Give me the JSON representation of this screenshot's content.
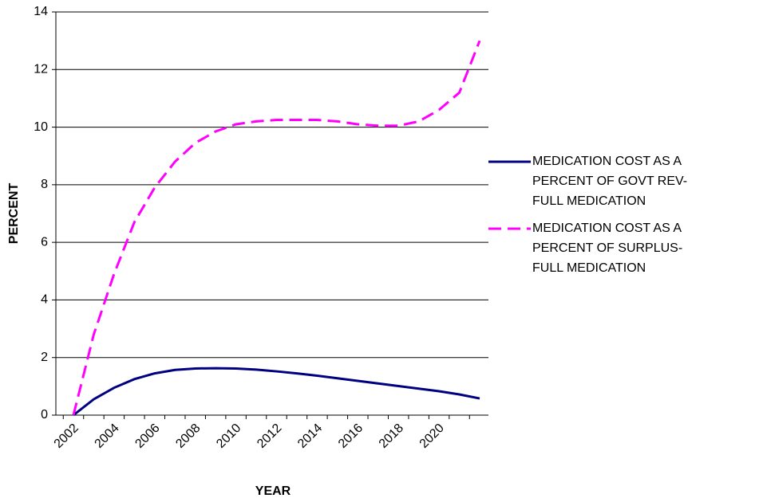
{
  "chart_data": {
    "type": "line",
    "x_label": "YEAR",
    "y_label": "PERCENT",
    "categories": [
      "2002",
      null,
      "2004",
      null,
      "2006",
      null,
      "2008",
      null,
      "2010",
      null,
      "2012",
      null,
      "2014",
      null,
      "2016",
      null,
      "2018",
      null,
      "2020",
      null,
      null
    ],
    "series": [
      {
        "name": "MEDICATION COST AS A PERCENT OF GOVT REV-FULL MEDICATION",
        "color": "#000080",
        "dash": "solid",
        "values": [
          0,
          0.55,
          0.95,
          1.25,
          1.45,
          1.57,
          1.62,
          1.63,
          1.62,
          1.58,
          1.52,
          1.45,
          1.37,
          1.28,
          1.19,
          1.1,
          1.01,
          0.92,
          0.83,
          0.72,
          0.58
        ]
      },
      {
        "name": "MEDICATION COST AS A PERCENT OF SURPLUS-FULL MEDICATION",
        "color": "#ff00ff",
        "dash": "dashed",
        "values": [
          0,
          2.8,
          4.9,
          6.7,
          7.9,
          8.8,
          9.45,
          9.85,
          10.1,
          10.2,
          10.25,
          10.25,
          10.25,
          10.2,
          10.1,
          10.05,
          10.05,
          10.2,
          10.6,
          11.2,
          13.0
        ]
      }
    ],
    "ylim": [
      0,
      14
    ],
    "yticks": [
      0,
      2,
      4,
      6,
      8,
      10,
      12,
      14
    ],
    "grid": true,
    "legend": "right"
  }
}
